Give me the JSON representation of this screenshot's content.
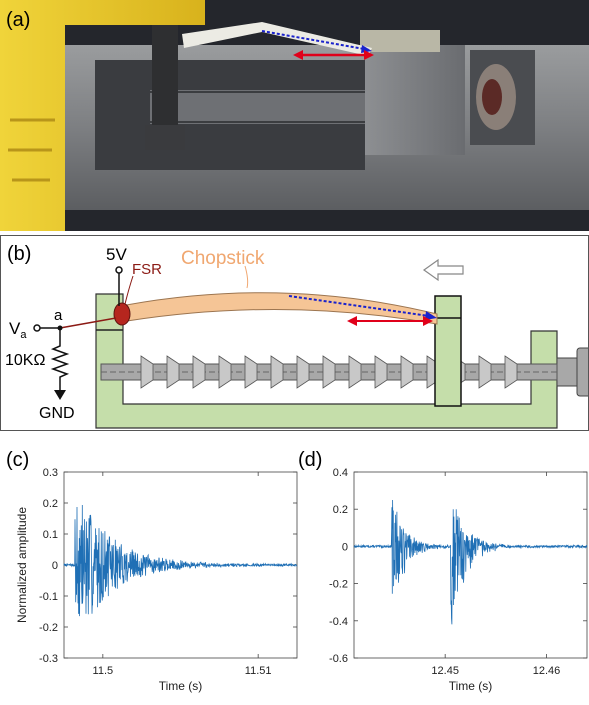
{
  "panel_a": {
    "label": "(a)"
  },
  "panel_b": {
    "label": "(b)",
    "supply": "5V",
    "sensor": "FSR",
    "object": "Chopstick",
    "output_node": "V",
    "output_node_subscript": "a",
    "node": "a",
    "resistor": "10KΩ",
    "ground": "GND"
  },
  "panel_c": {
    "label": "(c)"
  },
  "panel_d": {
    "label": "(d)"
  },
  "colors": {
    "chopstick": "#f5c596",
    "fsr": "#b5261e",
    "frame": "#c5deaa",
    "screw": "#a8a8a8",
    "arrow_red": "#e0001a",
    "arrow_blue": "#1a22cc",
    "signal": "#1f6fb5"
  },
  "chart_data": [
    {
      "type": "line",
      "panel": "(c)",
      "xlabel": "Time (s)",
      "ylabel": "Normalized amplitude",
      "xlim": [
        11.4975,
        11.5125
      ],
      "ylim": [
        -0.3,
        0.3
      ],
      "xticks": [
        11.5,
        11.51
      ],
      "xtick_labels": [
        "11.5",
        "11.51"
      ],
      "yticks": [
        -0.3,
        -0.2,
        -0.1,
        0,
        0.1,
        0.2,
        0.3
      ],
      "ytick_labels": [
        "-0.3",
        "-0.2",
        "-0.1",
        "0",
        "0.1",
        "0.2",
        "0.3"
      ],
      "series": [
        {
          "color": "#1f6fb5",
          "events": [
            {
              "t0": 11.4982,
              "peak_pos": 0.27,
              "peak_neg": -0.27,
              "decay": 0.0022
            }
          ],
          "noise": 0.004
        }
      ]
    },
    {
      "type": "line",
      "panel": "(d)",
      "xlabel": "Time (s)",
      "ylabel": "",
      "xlim": [
        12.441,
        12.464
      ],
      "ylim": [
        -0.6,
        0.4
      ],
      "xticks": [
        12.45,
        12.46
      ],
      "xtick_labels": [
        "12.45",
        "12.46"
      ],
      "yticks": [
        -0.6,
        -0.4,
        -0.2,
        0,
        0.2,
        0.4
      ],
      "ytick_labels": [
        "-0.6",
        "-0.4",
        "-0.2",
        "0",
        "0.2",
        "0.4"
      ],
      "series": [
        {
          "color": "#1f6fb5",
          "events": [
            {
              "t0": 12.4447,
              "peak_pos": 0.29,
              "peak_neg": -0.44,
              "decay": 0.0012
            },
            {
              "t0": 12.4505,
              "peak_pos": 0.33,
              "peak_neg": -0.5,
              "decay": 0.0014
            }
          ],
          "noise": 0.006
        }
      ]
    }
  ]
}
